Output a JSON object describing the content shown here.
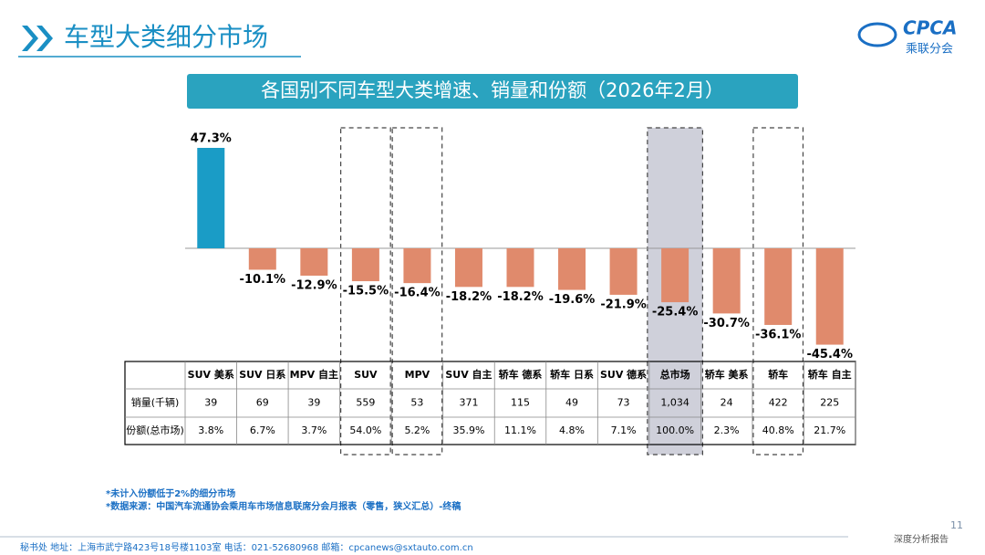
{
  "header": {
    "title": "车型大类细分市场",
    "logo": "CPCA",
    "logo_sub": "乘联分会"
  },
  "chart_data": {
    "type": "bar",
    "title": "各国别不同车型大类增速、销量和份额（2026年2月）",
    "categories": [
      "SUV 美系",
      "SUV 日系",
      "MPV 自主",
      "SUV",
      "MPV",
      "SUV 自主",
      "轿车 德系",
      "轿车 日系",
      "SUV 德系",
      "总市场",
      "轿车 美系",
      "轿车",
      "轿车 自主"
    ],
    "values": [
      47.3,
      -10.1,
      -12.9,
      -15.5,
      -16.4,
      -18.2,
      -18.2,
      -19.6,
      -21.9,
      -25.4,
      -30.7,
      -36.1,
      -45.4
    ],
    "value_labels": [
      "47.3%",
      "-10.1%",
      "-12.9%",
      "-15.5%",
      "-16.4%",
      "-18.2%",
      "-18.2%",
      "-19.6%",
      "-21.9%",
      "-25.4%",
      "-30.7%",
      "-36.1%",
      "-45.4%"
    ],
    "positive_color": "#1a9cc6",
    "negative_color": "#e08a6c"
  },
  "table": {
    "rows": [
      {
        "label": "销量(千辆)",
        "cells": [
          "39",
          "69",
          "39",
          "559",
          "53",
          "371",
          "115",
          "49",
          "73",
          "1,034",
          "24",
          "422",
          "225"
        ]
      },
      {
        "label": "份额(总市场)",
        "cells": [
          "3.8%",
          "6.7%",
          "3.7%",
          "54.0%",
          "5.2%",
          "35.9%",
          "11.1%",
          "4.8%",
          "7.1%",
          "100.0%",
          "2.3%",
          "40.8%",
          "21.7%"
        ]
      }
    ]
  },
  "notes": [
    "*未计入份额低于2%的细分市场",
    "*数据来源：中国汽车流通协会乘用车市场信息联席分会月报表（零售，狭义汇总）-终稿"
  ],
  "page_number": "11",
  "footer": {
    "address": "秘书处   地址：上海市武宁路423号18号楼1103室   电话：021-52680968   邮箱：cpcanews@sxtauto.com.cn",
    "report": "深度分析报告"
  }
}
